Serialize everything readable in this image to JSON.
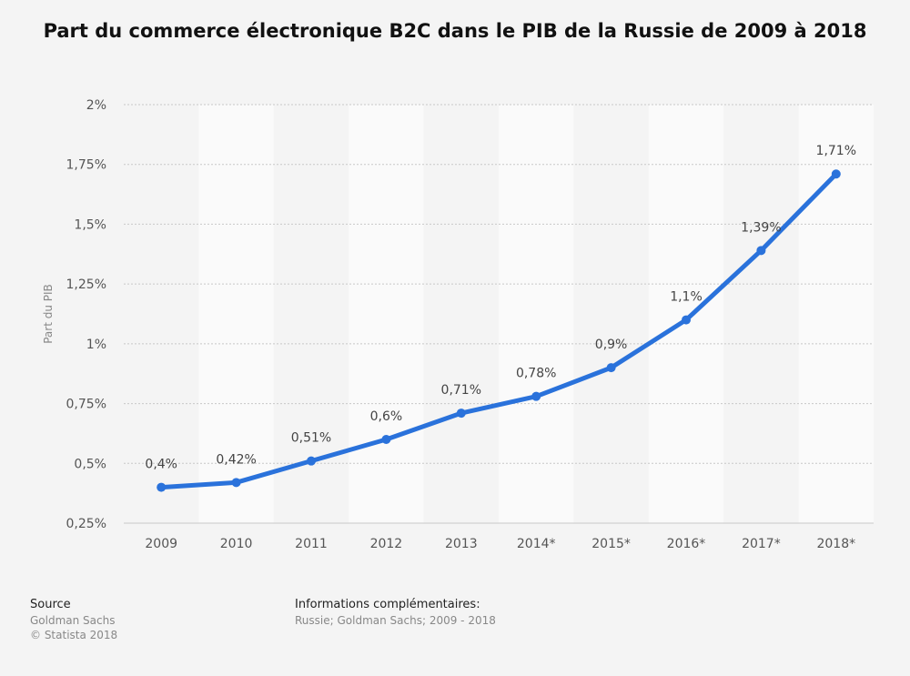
{
  "chart_data": {
    "type": "line",
    "title": "Part du commerce électronique B2C dans le PIB de la Russie de 2009 à 2018",
    "ylabel": "Part du PIB",
    "xlabel": "",
    "categories": [
      "2009",
      "2010",
      "2011",
      "2012",
      "2013",
      "2014*",
      "2015*",
      "2016*",
      "2017*",
      "2018*"
    ],
    "values": [
      0.4,
      0.42,
      0.51,
      0.6,
      0.71,
      0.78,
      0.9,
      1.1,
      1.39,
      1.71
    ],
    "data_labels": [
      "0,4%",
      "0,42%",
      "0,51%",
      "0,6%",
      "0,71%",
      "0,78%",
      "0,9%",
      "1,1%",
      "1,39%",
      "1,71%"
    ],
    "ylim": [
      0.25,
      2
    ],
    "yticks": [
      0.25,
      0.5,
      0.75,
      1,
      1.25,
      1.5,
      1.75,
      2
    ],
    "ytick_labels": [
      "0,25%",
      "0,5%",
      "0,75%",
      "1%",
      "1,25%",
      "1,5%",
      "1,75%",
      "2%"
    ],
    "series_color": "#2a72db",
    "grid": true
  },
  "footer": {
    "source_heading": "Source",
    "source_name": "Goldman Sachs",
    "copyright": "© Statista 2018",
    "info_heading": "Informations complémentaires:",
    "info_text": "Russie; Goldman Sachs; 2009 - 2018"
  }
}
